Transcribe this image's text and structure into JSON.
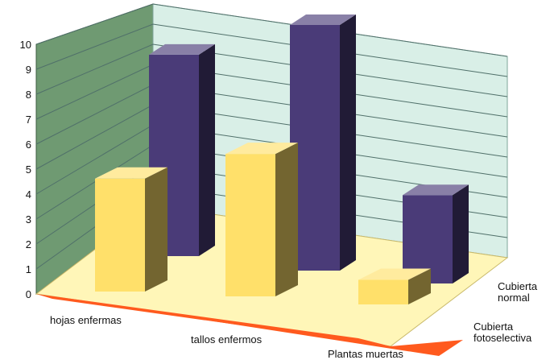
{
  "chart_data": {
    "type": "bar",
    "style": "3d-column",
    "categories": [
      "hojas enfermas",
      "tallos enfermos",
      "Plantas muertas"
    ],
    "series": [
      {
        "name": "Cubierta normal",
        "values": [
          8.2,
          10.0,
          3.6
        ],
        "color": "#4a3b78"
      },
      {
        "name": "Cubierta fotoselectiva",
        "values": [
          4.6,
          5.8,
          1.0
        ],
        "color": "#ffe06a"
      }
    ],
    "y_ticks": [
      "0",
      "1",
      "2",
      "3",
      "4",
      "5",
      "6",
      "7",
      "8",
      "9",
      "10"
    ],
    "ylim": [
      0,
      10
    ],
    "grid": true,
    "legend": "depth-axis labels on right",
    "colors": {
      "left_wall": "#6f9a72",
      "back_wall": "#d9efe7",
      "floor": "#fff6b8",
      "floor_edge": "#ff5a1e"
    }
  }
}
